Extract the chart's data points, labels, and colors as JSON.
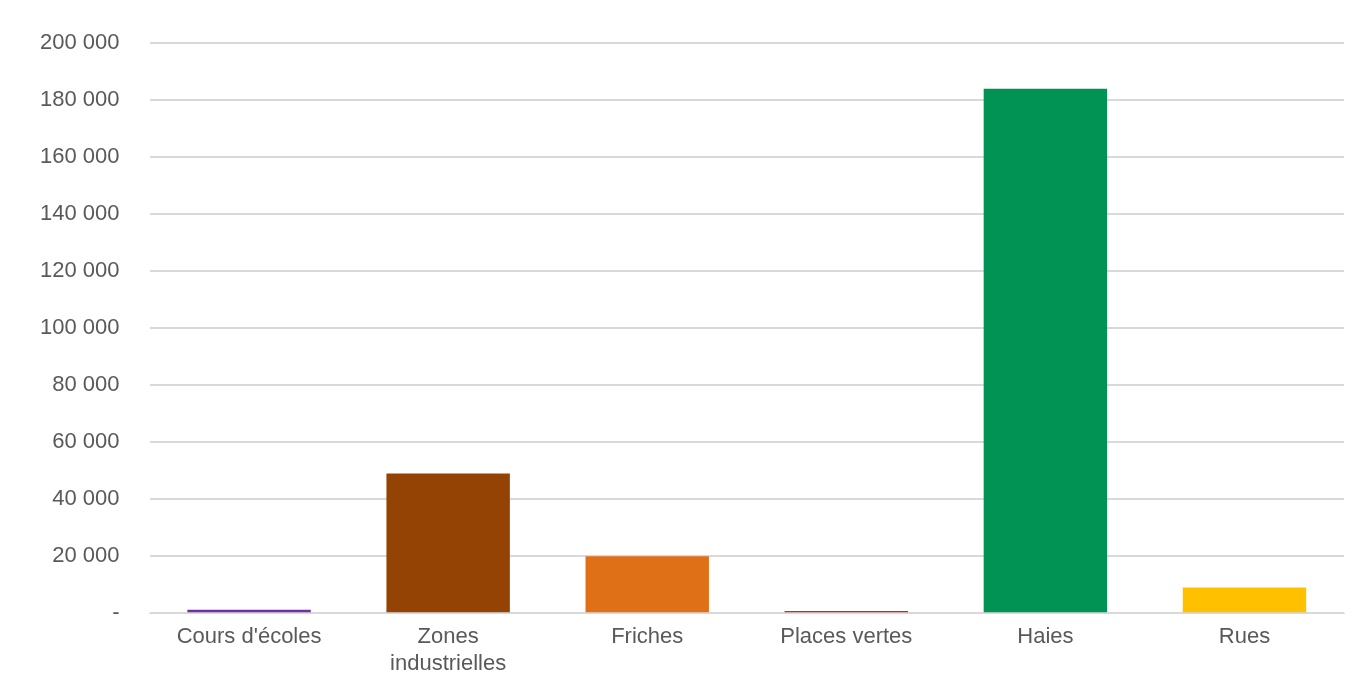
{
  "chart_data": {
    "type": "bar",
    "categories": [
      "Cours d'écoles",
      "Zones industrielles",
      "Friches",
      "Places vertes",
      "Haies",
      "Rues"
    ],
    "values": [
      1200,
      49000,
      20000,
      800,
      184000,
      9000
    ],
    "colors": [
      "#7030a0",
      "#954305",
      "#e07018",
      "#e02020",
      "#009353",
      "#ffc000"
    ],
    "ylim": [
      0,
      200000
    ],
    "yticks": [
      {
        "value": 0,
        "label": "-"
      },
      {
        "value": 20000,
        "label": "20 000"
      },
      {
        "value": 40000,
        "label": "40 000"
      },
      {
        "value": 60000,
        "label": "60 000"
      },
      {
        "value": 80000,
        "label": "80 000"
      },
      {
        "value": 100000,
        "label": "100 000"
      },
      {
        "value": 120000,
        "label": "120 000"
      },
      {
        "value": 140000,
        "label": "140 000"
      },
      {
        "value": 160000,
        "label": "160 000"
      },
      {
        "value": 180000,
        "label": "180 000"
      },
      {
        "value": 200000,
        "label": "200 000"
      }
    ],
    "grid": "y"
  }
}
